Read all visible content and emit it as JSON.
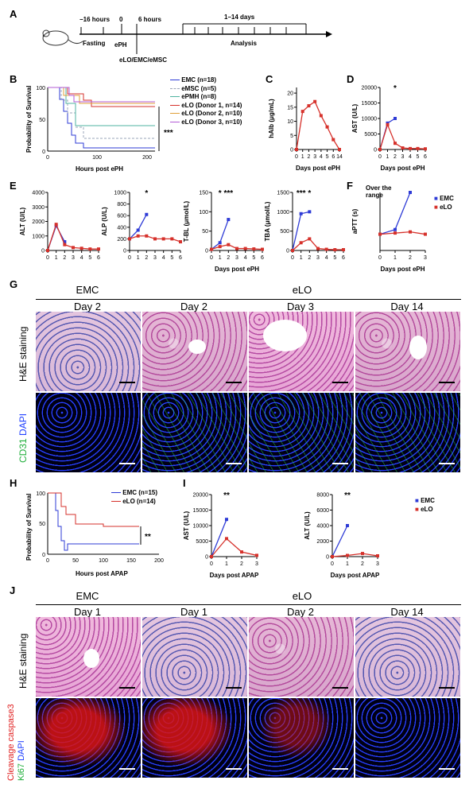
{
  "panel_letters": [
    "A",
    "B",
    "C",
    "D",
    "E",
    "F",
    "G",
    "H",
    "I",
    "J"
  ],
  "panel_a": {
    "t1": "−16 hours",
    "t2": "0",
    "t3": "6 hours",
    "t4": "1–14 days",
    "fasting": "Fasting",
    "eph": "ePH",
    "analysis": "Analysis",
    "treatment": "eLO/EMC/eMSC"
  },
  "panel_b": {
    "ylabel": "Probability of Survival",
    "xlabel": "Hours post ePH",
    "sig": "***",
    "legend": [
      "EMC (n=18)",
      "eMSC (n=5)",
      "ePMH (n=8)",
      "eLO (Donor 1, n=14)",
      "eLO (Donor 2, n=10)",
      "eLO (Donor 3, n=10)"
    ],
    "colors": [
      "#2e3bd6",
      "#9aa4b8",
      "#4fb3a0",
      "#d6312b",
      "#e0a03a",
      "#b35bd6"
    ]
  },
  "panel_g": {
    "col_headers": [
      "EMC",
      "eLO"
    ],
    "days": [
      "Day 2",
      "Day 2",
      "Day 3",
      "Day 14"
    ],
    "row1": "H&E staining",
    "row2a": "CD31",
    "row2b": "DAPI"
  },
  "panel_j": {
    "col_headers": [
      "EMC",
      "eLO"
    ],
    "days": [
      "Day 1",
      "Day 1",
      "Day 2",
      "Day 14"
    ],
    "row1": "H&E staining",
    "row2a": "Cleavage caspase3",
    "row2b": "Ki67",
    "row2c": "DAPI"
  },
  "chart_data": [
    {
      "id": "C",
      "type": "line",
      "ylabel": "hAlb (μg/mL)",
      "xlabel": "Days post ePH",
      "xticks": [
        0,
        1,
        2,
        3,
        4,
        5,
        6,
        14
      ],
      "yticks": [
        0,
        5,
        10,
        15,
        20
      ],
      "ylim": [
        0,
        22
      ],
      "series": [
        {
          "color": "#d6312b",
          "values": [
            0,
            13.5,
            15.5,
            17,
            12,
            8,
            3.5,
            0
          ]
        }
      ]
    },
    {
      "id": "D",
      "type": "line",
      "ylabel": "AST (U/L)",
      "xlabel": "Days post ePH",
      "xticks": [
        0,
        1,
        2,
        3,
        4,
        5,
        6
      ],
      "yticks": [
        0,
        5000,
        10000,
        15000,
        20000
      ],
      "ylim": [
        0,
        20000
      ],
      "sig": [
        {
          "x": 2,
          "text": "*"
        }
      ],
      "series": [
        {
          "name": "EMC",
          "color": "#2e3bd6",
          "x": [
            0,
            1,
            2
          ],
          "values": [
            0,
            8500,
            10000
          ]
        },
        {
          "name": "eLO",
          "color": "#d6312b",
          "x": [
            0,
            1,
            2,
            3,
            4,
            5,
            6
          ],
          "values": [
            0,
            8000,
            2000,
            500,
            300,
            300,
            200
          ]
        }
      ]
    },
    {
      "id": "E1",
      "type": "line",
      "ylabel": "ALT (U/L)",
      "xlabel": "",
      "xticks": [
        0,
        1,
        2,
        3,
        4,
        5,
        6
      ],
      "yticks": [
        0,
        1000,
        2000,
        3000,
        4000
      ],
      "ylim": [
        0,
        4000
      ],
      "series": [
        {
          "name": "EMC",
          "color": "#2e3bd6",
          "x": [
            0,
            1,
            2
          ],
          "values": [
            0,
            1700,
            600
          ]
        },
        {
          "name": "eLO",
          "color": "#d6312b",
          "x": [
            0,
            1,
            2,
            3,
            4,
            5,
            6
          ],
          "values": [
            0,
            1800,
            400,
            200,
            150,
            100,
            100
          ]
        }
      ]
    },
    {
      "id": "E2",
      "type": "line",
      "ylabel": "ALP (U/L)",
      "xlabel": "",
      "xticks": [
        0,
        1,
        2,
        3,
        4,
        5,
        6
      ],
      "yticks": [
        0,
        200,
        400,
        600,
        800,
        1000
      ],
      "ylim": [
        0,
        1000
      ],
      "sig": [
        {
          "x": 2,
          "text": "*"
        }
      ],
      "series": [
        {
          "name": "EMC",
          "color": "#2e3bd6",
          "x": [
            0,
            1,
            2
          ],
          "values": [
            200,
            350,
            620
          ]
        },
        {
          "name": "eLO",
          "color": "#d6312b",
          "x": [
            0,
            1,
            2,
            3,
            4,
            5,
            6
          ],
          "values": [
            200,
            250,
            250,
            200,
            200,
            200,
            150
          ]
        }
      ]
    },
    {
      "id": "E3",
      "type": "line",
      "ylabel": "T-BL (μmol/L)",
      "xlabel": "Days post ePH",
      "xticks": [
        0,
        1,
        2,
        3,
        4,
        5,
        6
      ],
      "yticks": [
        0,
        50,
        100,
        150
      ],
      "ylim": [
        0,
        150
      ],
      "sig": [
        {
          "x": 1,
          "text": "*"
        },
        {
          "x": 2,
          "text": "***"
        }
      ],
      "series": [
        {
          "name": "EMC",
          "color": "#2e3bd6",
          "x": [
            0,
            1,
            2
          ],
          "values": [
            3,
            20,
            80
          ]
        },
        {
          "name": "eLO",
          "color": "#d6312b",
          "x": [
            0,
            1,
            2,
            3,
            4,
            5,
            6
          ],
          "values": [
            3,
            10,
            15,
            5,
            5,
            4,
            3
          ]
        }
      ]
    },
    {
      "id": "E4",
      "type": "line",
      "ylabel": "TBA (μmol/L)",
      "xlabel": "",
      "xticks": [
        0,
        1,
        2,
        3,
        4,
        5,
        6
      ],
      "yticks": [
        0,
        500,
        1000,
        1500
      ],
      "ylim": [
        0,
        1500
      ],
      "sig": [
        {
          "x": 1,
          "text": "***"
        },
        {
          "x": 2,
          "text": "*"
        }
      ],
      "series": [
        {
          "name": "EMC",
          "color": "#2e3bd6",
          "x": [
            0,
            1,
            2
          ],
          "values": [
            0,
            950,
            1000
          ]
        },
        {
          "name": "eLO",
          "color": "#d6312b",
          "x": [
            0,
            1,
            2,
            3,
            4,
            5,
            6
          ],
          "values": [
            0,
            200,
            300,
            50,
            30,
            20,
            20
          ]
        }
      ]
    },
    {
      "id": "F",
      "type": "line",
      "ylabel": "aPTT (s)",
      "xlabel": "Days post ePH",
      "xticks": [
        0,
        1,
        2,
        3
      ],
      "yticks": [],
      "ylim": [
        0,
        100
      ],
      "annotation": "Over the range",
      "series": [
        {
          "name": "EMC",
          "color": "#2e3bd6",
          "x": [
            0,
            1,
            2
          ],
          "values": [
            28,
            36,
            100
          ]
        },
        {
          "name": "eLO",
          "color": "#d6312b",
          "x": [
            0,
            1,
            2,
            3
          ],
          "values": [
            28,
            30,
            32,
            28
          ]
        }
      ]
    },
    {
      "id": "H",
      "type": "line",
      "ylabel": "Probability of Survival",
      "xlabel": "Hours post APAP",
      "xticks": [
        0,
        50,
        100,
        150,
        200
      ],
      "yticks": [
        0,
        50,
        100
      ],
      "ylim": [
        0,
        100
      ],
      "sig": [
        {
          "x": 175,
          "text": "**"
        }
      ],
      "series": [
        {
          "name": "EMC (n=15)",
          "color": "#2e3bd6"
        },
        {
          "name": "eLO (n=14)",
          "color": "#d6312b"
        }
      ]
    },
    {
      "id": "I1",
      "type": "line",
      "ylabel": "AST (U/L)",
      "xlabel": "Days post APAP",
      "xticks": [
        0,
        1,
        2,
        3
      ],
      "yticks": [
        0,
        5000,
        10000,
        15000,
        20000
      ],
      "ylim": [
        0,
        20000
      ],
      "sig": [
        {
          "x": 1,
          "text": "**"
        }
      ],
      "series": [
        {
          "name": "EMC",
          "color": "#2e3bd6",
          "x": [
            0,
            1
          ],
          "values": [
            0,
            12000
          ]
        },
        {
          "name": "eLO",
          "color": "#d6312b",
          "x": [
            0,
            1,
            2,
            3
          ],
          "values": [
            0,
            5800,
            1500,
            400
          ]
        }
      ]
    },
    {
      "id": "I2",
      "type": "line",
      "ylabel": "ALT (U/L)",
      "xlabel": "Days post APAP",
      "xticks": [
        0,
        1,
        2,
        3
      ],
      "yticks": [
        0,
        2000,
        4000,
        6000,
        8000
      ],
      "ylim": [
        0,
        8000
      ],
      "sig": [
        {
          "x": 1,
          "text": "**"
        }
      ],
      "series": [
        {
          "name": "EMC",
          "color": "#2e3bd6",
          "x": [
            0,
            1
          ],
          "values": [
            0,
            4000
          ]
        },
        {
          "name": "eLO",
          "color": "#d6312b",
          "x": [
            0,
            1,
            2,
            3
          ],
          "values": [
            0,
            150,
            400,
            100
          ]
        }
      ]
    }
  ]
}
